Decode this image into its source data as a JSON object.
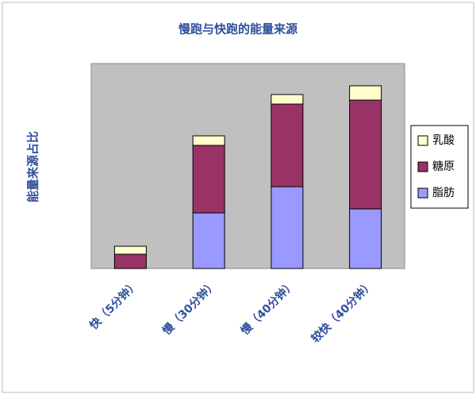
{
  "chart_data": {
    "type": "stacked_bar",
    "title": "慢跑与快跑的能量来源",
    "y_label": "能量来源占比",
    "categories": [
      "快（5分钟）",
      "慢（30分钟）",
      "慢（40分钟）",
      "较快（40分钟）"
    ],
    "series": [
      {
        "name": "脂肪",
        "color": "#9999ff",
        "values": [
          0,
          70,
          103,
          75
        ]
      },
      {
        "name": "糖原",
        "color": "#993366",
        "values": [
          18,
          85,
          104,
          137
        ]
      },
      {
        "name": "乳酸",
        "color": "#ffffcc",
        "values": [
          10,
          12,
          12,
          18
        ]
      }
    ],
    "ylim": [
      0,
      258
    ],
    "legend": "right",
    "background": "#c0c0c0"
  }
}
